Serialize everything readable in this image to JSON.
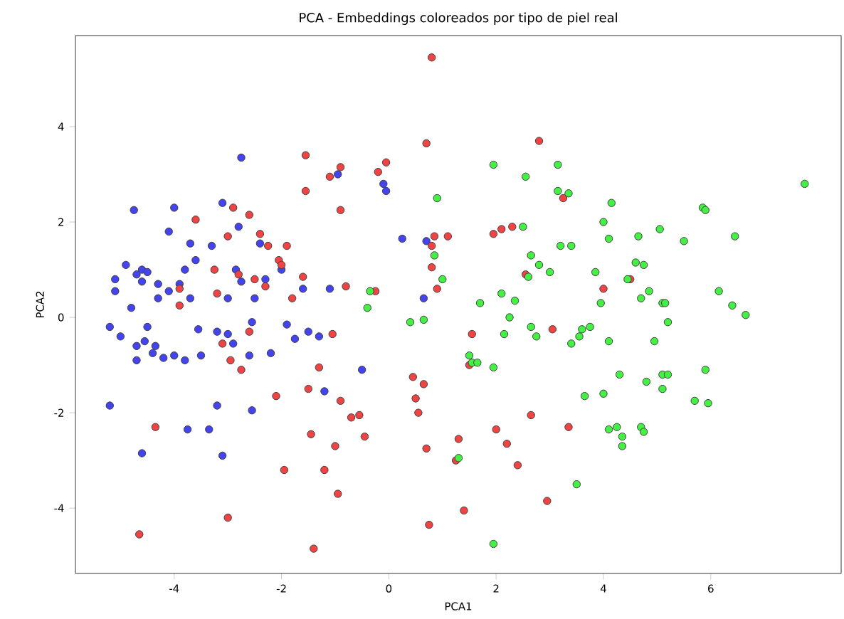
{
  "chart_data": {
    "type": "scatter",
    "title": "PCA - Embeddings coloreados por tipo de piel real",
    "xlabel": "PCA1",
    "ylabel": "PCA2",
    "xlim": [
      -5.84,
      8.43
    ],
    "ylim": [
      -5.37,
      5.91
    ],
    "xticks": [
      -4,
      -2,
      0,
      2,
      4,
      6
    ],
    "yticks": [
      -4,
      -2,
      0,
      2,
      4
    ],
    "marker": "circle",
    "grid": false,
    "series": [
      {
        "color": "#4343f0",
        "x": [
          -5.2,
          -5.2,
          -5.1,
          -5.1,
          -5.0,
          -4.9,
          -4.8,
          -4.75,
          -4.7,
          -4.6,
          -4.6,
          -4.5,
          -4.7,
          -4.7,
          -4.6,
          -4.55,
          -4.5,
          -4.4,
          -4.35,
          -4.3,
          -4.2,
          -4.1,
          -4.1,
          -4.0,
          -4.0,
          -3.9,
          -3.8,
          -3.8,
          -3.75,
          -3.7,
          -3.7,
          -3.6,
          -3.5,
          -3.35,
          -3.3,
          -3.2,
          -3.2,
          -3.1,
          -3.1,
          -3.0,
          -3.0,
          -2.9,
          -2.85,
          -2.8,
          -2.75,
          -2.75,
          -2.6,
          -2.55,
          -2.55,
          -2.5,
          -2.4,
          -2.3,
          -2.2,
          -1.9,
          -1.75,
          -1.6,
          -1.5,
          -1.3,
          -1.2,
          -1.1,
          -0.95,
          -0.5,
          -0.1,
          -0.05,
          0.25,
          0.65,
          0.7,
          -2.0,
          -3.55,
          -4.3
        ],
        "values": [
          -1.85,
          -0.2,
          0.55,
          0.8,
          -0.4,
          1.1,
          0.2,
          2.25,
          0.9,
          1.0,
          0.75,
          0.95,
          -0.6,
          -0.9,
          -2.85,
          -0.5,
          -0.2,
          -0.75,
          -0.6,
          0.7,
          -0.85,
          1.8,
          0.55,
          2.3,
          -0.8,
          0.7,
          -0.9,
          1.0,
          -2.35,
          1.55,
          0.4,
          1.2,
          -0.8,
          -2.35,
          1.5,
          -0.3,
          -1.85,
          -2.9,
          2.4,
          0.4,
          -0.35,
          -0.55,
          1.0,
          1.9,
          3.35,
          0.75,
          -0.8,
          -0.1,
          -1.95,
          0.4,
          1.55,
          0.8,
          -0.75,
          -0.15,
          -0.45,
          0.6,
          -0.3,
          -0.4,
          -1.55,
          0.6,
          3.0,
          -1.1,
          2.8,
          2.65,
          1.65,
          0.4,
          1.6,
          1.0,
          -0.25,
          0.4
        ]
      },
      {
        "color": "#f04343",
        "x": [
          -4.65,
          -4.35,
          -3.9,
          -3.9,
          -3.6,
          -3.25,
          -3.2,
          -3.1,
          -3.0,
          -2.9,
          -3.0,
          -2.95,
          -2.8,
          -2.75,
          -2.6,
          -2.6,
          -2.5,
          -2.4,
          -2.3,
          -2.25,
          -2.1,
          -2.05,
          -2.0,
          -1.95,
          -1.9,
          -1.8,
          -1.6,
          -1.55,
          -1.55,
          -1.5,
          -1.45,
          -1.4,
          -1.3,
          -1.2,
          -1.1,
          -1.05,
          -1.0,
          -0.95,
          -0.9,
          -0.9,
          -0.9,
          -0.8,
          -0.7,
          -0.55,
          -0.45,
          -0.25,
          -0.2,
          -0.05,
          0.45,
          0.5,
          0.55,
          0.65,
          0.7,
          0.7,
          0.75,
          0.8,
          0.8,
          0.8,
          0.85,
          0.9,
          1.1,
          1.25,
          1.3,
          1.4,
          1.55,
          1.95,
          2.0,
          2.2,
          2.3,
          2.4,
          2.55,
          2.65,
          2.8,
          2.95,
          3.05,
          3.25,
          3.35,
          4.0,
          4.5,
          2.1,
          1.5
        ],
        "values": [
          -4.55,
          -2.3,
          0.6,
          0.25,
          2.05,
          1.0,
          0.5,
          -0.55,
          1.7,
          2.3,
          -4.2,
          -0.9,
          0.9,
          -1.1,
          -0.3,
          2.15,
          0.8,
          1.75,
          0.65,
          1.5,
          -1.65,
          1.2,
          1.1,
          -3.2,
          1.5,
          0.4,
          0.85,
          3.4,
          2.65,
          -1.5,
          -2.45,
          -4.85,
          -1.05,
          -3.2,
          2.95,
          -0.35,
          -2.7,
          -3.7,
          -1.75,
          2.25,
          3.15,
          0.65,
          -2.1,
          -2.05,
          -2.5,
          0.55,
          3.05,
          3.25,
          -1.25,
          -1.7,
          -2.0,
          -1.4,
          -2.75,
          3.65,
          -4.35,
          5.45,
          1.05,
          1.5,
          1.7,
          0.6,
          1.7,
          -3.0,
          -2.55,
          -4.05,
          -0.35,
          1.75,
          -2.35,
          -2.65,
          1.9,
          -3.1,
          0.9,
          -2.05,
          3.7,
          -3.85,
          -0.25,
          2.5,
          -2.3,
          0.6,
          0.8,
          1.85,
          -1.0
        ]
      },
      {
        "color": "#43f043",
        "x": [
          -0.4,
          -0.35,
          0.4,
          0.65,
          0.9,
          1.0,
          0.85,
          1.3,
          1.55,
          1.5,
          1.65,
          1.7,
          1.95,
          1.95,
          1.95,
          2.1,
          2.15,
          2.25,
          2.35,
          2.5,
          2.55,
          2.6,
          2.65,
          2.8,
          2.65,
          2.75,
          3.0,
          3.15,
          3.15,
          3.2,
          3.4,
          3.35,
          3.4,
          3.5,
          3.55,
          3.6,
          3.65,
          3.75,
          3.85,
          3.95,
          4.0,
          4.1,
          4.15,
          4.1,
          4.0,
          4.1,
          4.25,
          4.3,
          4.35,
          4.35,
          4.45,
          4.65,
          4.7,
          4.75,
          4.7,
          4.75,
          4.8,
          4.85,
          4.95,
          5.05,
          5.1,
          5.1,
          5.1,
          5.2,
          5.2,
          5.15,
          5.5,
          5.7,
          5.85,
          5.9,
          5.9,
          5.95,
          6.15,
          6.4,
          6.45,
          6.65,
          7.75,
          4.6
        ],
        "values": [
          0.2,
          0.55,
          -0.1,
          -0.05,
          2.5,
          0.8,
          1.3,
          -2.95,
          -0.95,
          -0.8,
          -0.95,
          0.3,
          3.2,
          -1.05,
          -4.75,
          0.5,
          -0.35,
          0.0,
          0.35,
          1.9,
          2.95,
          0.85,
          1.3,
          1.1,
          -0.2,
          -0.4,
          0.95,
          3.2,
          2.65,
          1.5,
          1.5,
          2.6,
          -0.55,
          -3.5,
          -0.4,
          -0.25,
          -1.65,
          -0.2,
          0.95,
          0.3,
          2.0,
          1.65,
          2.4,
          -0.5,
          -1.6,
          -2.35,
          -2.3,
          -1.2,
          -2.5,
          -2.7,
          0.8,
          1.7,
          0.4,
          1.1,
          -2.3,
          -2.4,
          -1.35,
          0.55,
          -0.5,
          1.85,
          -1.2,
          0.3,
          -1.5,
          -0.1,
          -1.2,
          0.3,
          1.6,
          -1.75,
          2.3,
          2.25,
          -1.1,
          -1.8,
          0.55,
          0.25,
          1.7,
          0.05,
          2.8,
          1.15
        ]
      }
    ]
  }
}
